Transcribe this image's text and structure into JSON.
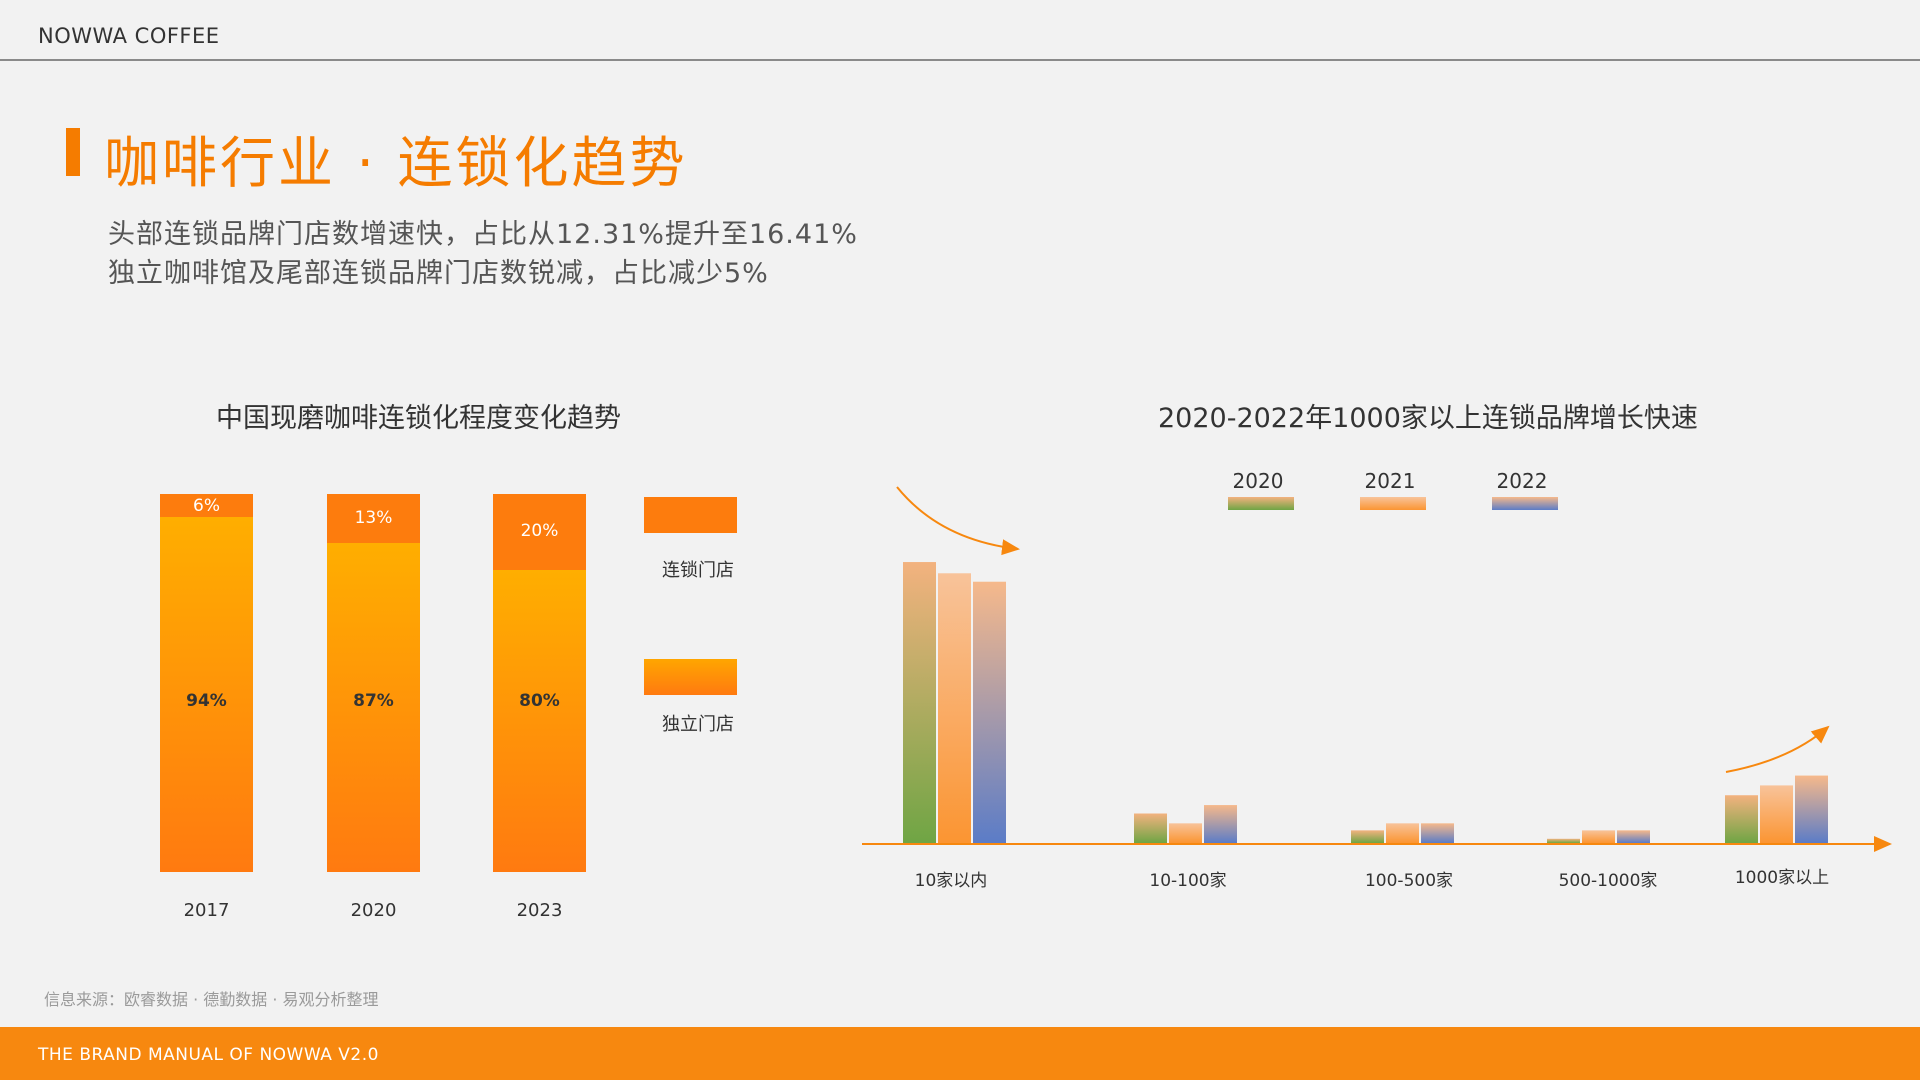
{
  "header": {
    "brand": "NOWWA COFFEE"
  },
  "page": {
    "title": "咖啡行业 · 连锁化趋势",
    "subtitle_lines": [
      "头部连锁品牌门店数增速快，占比从12.31%提升至16.41%",
      "独立咖啡馆及尾部连锁品牌门店数锐减，占比减少5%"
    ]
  },
  "chart_data": [
    {
      "type": "bar",
      "stacked": true,
      "title": "中国现磨咖啡连锁化程度变化趋势",
      "categories": [
        "2017",
        "2020",
        "2023"
      ],
      "series": [
        {
          "name": "连锁门店",
          "values": [
            6,
            13,
            20
          ],
          "labels": [
            "6%",
            "13%",
            "20%"
          ],
          "color": "#fd7c0d"
        },
        {
          "name": "独立门店",
          "values": [
            94,
            87,
            80
          ],
          "labels": [
            "94%",
            "87%",
            "80%"
          ],
          "color": "#ffa600"
        }
      ],
      "ylim": [
        0,
        100
      ],
      "grid": false,
      "legend": "right"
    },
    {
      "type": "bar",
      "title": "2020-2022年1000家以上连锁品牌增长快速",
      "categories": [
        "10家以内",
        "10-100家",
        "100-500家",
        "500-1000家",
        "1000家以上"
      ],
      "series": [
        {
          "name": "2020",
          "values": [
            100,
            10.5,
            4.5,
            1.5,
            17
          ],
          "colors": [
            "#f3b27f",
            "#6fa544"
          ]
        },
        {
          "name": "2021",
          "values": [
            96,
            7,
            7,
            4.5,
            20.5
          ],
          "colors": [
            "#f8c39a",
            "#fb9532"
          ]
        },
        {
          "name": "2022",
          "values": [
            93,
            13.5,
            7,
            4.5,
            24
          ],
          "colors": [
            "#f6b98b",
            "#5b7cc7"
          ]
        }
      ],
      "ylim": [
        0,
        105
      ],
      "axes": false,
      "grid": false,
      "legend": "top",
      "annotations": [
        "decreasing arrow over 10家以内",
        "increasing arrow over 1000家以上"
      ],
      "axis_color": "#f7880f"
    }
  ],
  "source": "信息来源：欧睿数据 · 德勤数据 · 易观分析整理",
  "footer": {
    "text": "THE BRAND  MANUAL  OF NOWWA V2.0"
  }
}
